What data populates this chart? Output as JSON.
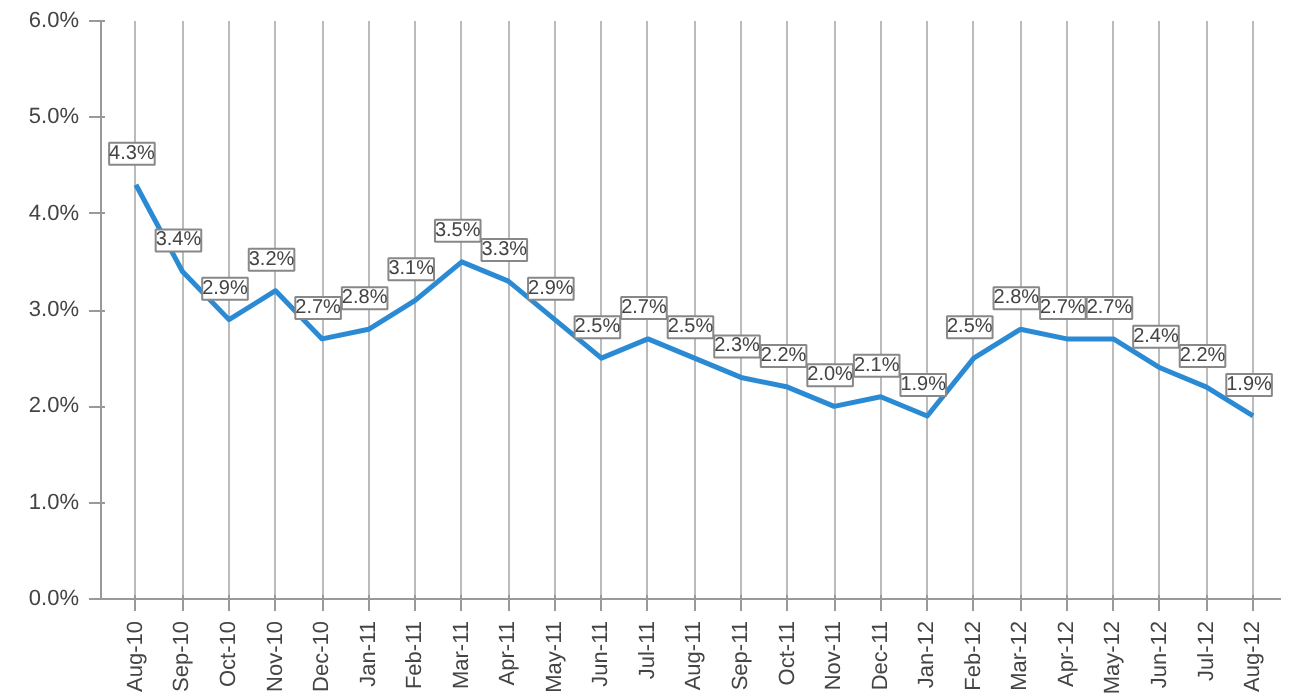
{
  "chart_data": {
    "type": "line",
    "categories": [
      "Aug-10",
      "Sep-10",
      "Oct-10",
      "Nov-10",
      "Dec-10",
      "Jan-11",
      "Feb-11",
      "Mar-11",
      "Apr-11",
      "May-11",
      "Jun-11",
      "Jul-11",
      "Aug-11",
      "Sep-11",
      "Oct-11",
      "Nov-11",
      "Dec-11",
      "Jan-12",
      "Feb-12",
      "Mar-12",
      "Apr-12",
      "May-12",
      "Jun-12",
      "Jul-12",
      "Aug-12"
    ],
    "series": [
      {
        "color": "#2a8ad4",
        "values": [
          4.3,
          3.4,
          2.9,
          3.2,
          2.7,
          2.8,
          3.1,
          3.5,
          3.3,
          2.9,
          2.5,
          2.7,
          2.5,
          2.3,
          2.2,
          2.0,
          2.1,
          1.9,
          2.5,
          2.8,
          2.7,
          2.7,
          2.4,
          2.2,
          1.9
        ],
        "value_labels": [
          "4.3%",
          "3.4%",
          "2.9%",
          "3.2%",
          "2.7%",
          "2.8%",
          "3.1%",
          "3.5%",
          "3.3%",
          "2.9%",
          "2.5%",
          "2.7%",
          "2.5%",
          "2.3%",
          "2.2%",
          "2.0%",
          "2.1%",
          "1.9%",
          "2.5%",
          "2.8%",
          "2.7%",
          "2.7%",
          "2.4%",
          "2.2%",
          "1.9%"
        ]
      }
    ],
    "ylim": [
      0,
      6
    ],
    "yticks": [
      {
        "value": 0,
        "label": "0.0%"
      },
      {
        "value": 1,
        "label": "1.0%"
      },
      {
        "value": 2,
        "label": "2.0%"
      },
      {
        "value": 3,
        "label": "3.0%"
      },
      {
        "value": 4,
        "label": "4.0%"
      },
      {
        "value": 5,
        "label": "5.0%"
      },
      {
        "value": 6,
        "label": "6.0%"
      }
    ],
    "grid": "x",
    "marker": "none",
    "line_style": "solid"
  }
}
